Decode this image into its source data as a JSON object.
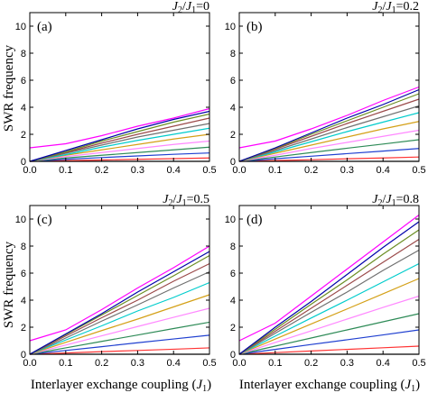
{
  "figure": {
    "ylabel": "SWR frequency",
    "xlabel_main": "Interlayer exchange coupling (",
    "xlabel_symbol": "J",
    "xlabel_sub": "1",
    "xlabel_close": ")"
  },
  "chart_data": [
    {
      "type": "line",
      "panel_label": "(a)",
      "ratio_text": "0",
      "xlim": [
        0,
        0.5
      ],
      "ylim": [
        0,
        11
      ],
      "xticks": [
        "0.0",
        "0.1",
        "0.2",
        "0.3",
        "0.4",
        "0.5"
      ],
      "yticks": [
        "0",
        "2",
        "4",
        "6",
        "8",
        "10"
      ],
      "x": [
        0,
        0.1,
        0.2,
        0.3,
        0.4,
        0.5
      ],
      "series": [
        {
          "color": "#ff00ff",
          "values": [
            1.0,
            1.3,
            1.9,
            2.6,
            3.2,
            3.9
          ]
        },
        {
          "color": "#0000aa",
          "values": [
            0,
            0.8,
            1.6,
            2.4,
            3.1,
            3.7
          ]
        },
        {
          "color": "#6b8e23",
          "values": [
            0,
            0.7,
            1.5,
            2.2,
            2.9,
            3.5
          ]
        },
        {
          "color": "#9b4a4a",
          "values": [
            0,
            0.65,
            1.35,
            2.0,
            2.6,
            3.2
          ]
        },
        {
          "color": "#707070",
          "values": [
            0,
            0.6,
            1.2,
            1.8,
            2.3,
            2.8
          ]
        },
        {
          "color": "#00cccc",
          "values": [
            0,
            0.5,
            1.05,
            1.55,
            2.0,
            2.45
          ]
        },
        {
          "color": "#d4a017",
          "values": [
            0,
            0.45,
            0.85,
            1.25,
            1.65,
            2.0
          ]
        },
        {
          "color": "#ff88ff",
          "values": [
            0,
            0.35,
            0.65,
            0.95,
            1.25,
            1.5
          ]
        },
        {
          "color": "#2e8b57",
          "values": [
            0,
            0.25,
            0.45,
            0.65,
            0.85,
            1.05
          ]
        },
        {
          "color": "#1f3fd0",
          "values": [
            0,
            0.15,
            0.28,
            0.4,
            0.52,
            0.62
          ]
        },
        {
          "color": "#ff3333",
          "values": [
            0,
            0.05,
            0.1,
            0.15,
            0.2,
            0.25
          ]
        },
        {
          "color": "#000000",
          "values": [
            0,
            0,
            0,
            0,
            0,
            0
          ]
        }
      ]
    },
    {
      "type": "line",
      "panel_label": "(b)",
      "ratio_text": "0.2",
      "xlim": [
        0,
        0.5
      ],
      "ylim": [
        0,
        11
      ],
      "xticks": [
        "0.0",
        "0.1",
        "0.2",
        "0.3",
        "0.4",
        "0.5"
      ],
      "yticks": [
        "0",
        "2",
        "4",
        "6",
        "8",
        "10"
      ],
      "x": [
        0,
        0.1,
        0.2,
        0.3,
        0.4,
        0.5
      ],
      "series": [
        {
          "color": "#ff00ff",
          "values": [
            1.0,
            1.5,
            2.4,
            3.4,
            4.5,
            5.5
          ]
        },
        {
          "color": "#0000aa",
          "values": [
            0,
            1.0,
            2.1,
            3.2,
            4.2,
            5.3
          ]
        },
        {
          "color": "#6b8e23",
          "values": [
            0,
            0.95,
            2.0,
            3.0,
            4.0,
            5.0
          ]
        },
        {
          "color": "#9b4a4a",
          "values": [
            0,
            0.9,
            1.85,
            2.8,
            3.7,
            4.6
          ]
        },
        {
          "color": "#707070",
          "values": [
            0,
            0.8,
            1.65,
            2.5,
            3.3,
            4.1
          ]
        },
        {
          "color": "#00cccc",
          "values": [
            0,
            0.7,
            1.45,
            2.2,
            2.9,
            3.6
          ]
        },
        {
          "color": "#d4a017",
          "values": [
            0,
            0.6,
            1.2,
            1.8,
            2.4,
            2.95
          ]
        },
        {
          "color": "#ff88ff",
          "values": [
            0,
            0.45,
            0.95,
            1.4,
            1.85,
            2.3
          ]
        },
        {
          "color": "#2e8b57",
          "values": [
            0,
            0.32,
            0.65,
            0.97,
            1.28,
            1.6
          ]
        },
        {
          "color": "#1f3fd0",
          "values": [
            0,
            0.19,
            0.38,
            0.57,
            0.76,
            0.95
          ]
        },
        {
          "color": "#ff3333",
          "values": [
            0,
            0.06,
            0.12,
            0.19,
            0.25,
            0.32
          ]
        },
        {
          "color": "#000000",
          "values": [
            0,
            0,
            0,
            0,
            0,
            0
          ]
        }
      ]
    },
    {
      "type": "line",
      "panel_label": "(c)",
      "ratio_text": "0.5",
      "xlim": [
        0,
        0.5
      ],
      "ylim": [
        0,
        11
      ],
      "xticks": [
        "0.0",
        "0.1",
        "0.2",
        "0.3",
        "0.4",
        "0.5"
      ],
      "yticks": [
        "0",
        "2",
        "4",
        "6",
        "8",
        "10"
      ],
      "x": [
        0,
        0.1,
        0.2,
        0.3,
        0.4,
        0.5
      ],
      "series": [
        {
          "color": "#ff00ff",
          "values": [
            1.0,
            1.8,
            3.3,
            4.9,
            6.4,
            8.0
          ]
        },
        {
          "color": "#0000aa",
          "values": [
            0,
            1.5,
            3.0,
            4.6,
            6.1,
            7.6
          ]
        },
        {
          "color": "#6b8e23",
          "values": [
            0,
            1.45,
            2.9,
            4.35,
            5.8,
            7.3
          ]
        },
        {
          "color": "#9b4a4a",
          "values": [
            0,
            1.35,
            2.7,
            4.0,
            5.4,
            6.7
          ]
        },
        {
          "color": "#707070",
          "values": [
            0,
            1.2,
            2.45,
            3.65,
            4.9,
            6.1
          ]
        },
        {
          "color": "#00cccc",
          "values": [
            0,
            1.05,
            2.1,
            3.2,
            4.2,
            5.3
          ]
        },
        {
          "color": "#d4a017",
          "values": [
            0,
            0.88,
            1.75,
            2.6,
            3.5,
            4.4
          ]
        },
        {
          "color": "#ff88ff",
          "values": [
            0,
            0.68,
            1.36,
            2.05,
            2.73,
            3.4
          ]
        },
        {
          "color": "#2e8b57",
          "values": [
            0,
            0.47,
            0.95,
            1.42,
            1.9,
            2.37
          ]
        },
        {
          "color": "#1f3fd0",
          "values": [
            0,
            0.28,
            0.56,
            0.85,
            1.13,
            1.41
          ]
        },
        {
          "color": "#ff3333",
          "values": [
            0,
            0.09,
            0.19,
            0.28,
            0.37,
            0.47
          ]
        },
        {
          "color": "#000000",
          "values": [
            0,
            0,
            0,
            0,
            0,
            0
          ]
        }
      ]
    },
    {
      "type": "line",
      "panel_label": "(d)",
      "ratio_text": "0.8",
      "xlim": [
        0,
        0.5
      ],
      "ylim": [
        0,
        11
      ],
      "xticks": [
        "0.0",
        "0.1",
        "0.2",
        "0.3",
        "0.4",
        "0.5"
      ],
      "yticks": [
        "0",
        "2",
        "4",
        "6",
        "8",
        "10"
      ],
      "x": [
        0,
        0.1,
        0.2,
        0.3,
        0.4,
        0.5
      ],
      "series": [
        {
          "color": "#ff00ff",
          "values": [
            1.0,
            2.3,
            4.3,
            6.3,
            8.3,
            10.3
          ]
        },
        {
          "color": "#0000aa",
          "values": [
            0,
            2.0,
            3.9,
            5.9,
            7.9,
            9.8
          ]
        },
        {
          "color": "#6b8e23",
          "values": [
            0,
            1.85,
            3.7,
            5.5,
            7.4,
            9.2
          ]
        },
        {
          "color": "#9b4a4a",
          "values": [
            0,
            1.7,
            3.4,
            5.1,
            6.8,
            8.5
          ]
        },
        {
          "color": "#707070",
          "values": [
            0,
            1.55,
            3.1,
            4.6,
            6.2,
            7.7
          ]
        },
        {
          "color": "#00cccc",
          "values": [
            0,
            1.34,
            2.68,
            4.0,
            5.35,
            6.7
          ]
        },
        {
          "color": "#d4a017",
          "values": [
            0,
            1.12,
            2.24,
            3.35,
            4.47,
            5.6
          ]
        },
        {
          "color": "#ff88ff",
          "values": [
            0,
            0.87,
            1.73,
            2.6,
            3.46,
            4.3
          ]
        },
        {
          "color": "#2e8b57",
          "values": [
            0,
            0.6,
            1.2,
            1.8,
            2.4,
            3.0
          ]
        },
        {
          "color": "#1f3fd0",
          "values": [
            0,
            0.36,
            0.72,
            1.07,
            1.43,
            1.8
          ]
        },
        {
          "color": "#ff3333",
          "values": [
            0,
            0.12,
            0.24,
            0.36,
            0.48,
            0.6
          ]
        },
        {
          "color": "#000000",
          "values": [
            0,
            0,
            0,
            0,
            0,
            0
          ]
        }
      ]
    }
  ]
}
